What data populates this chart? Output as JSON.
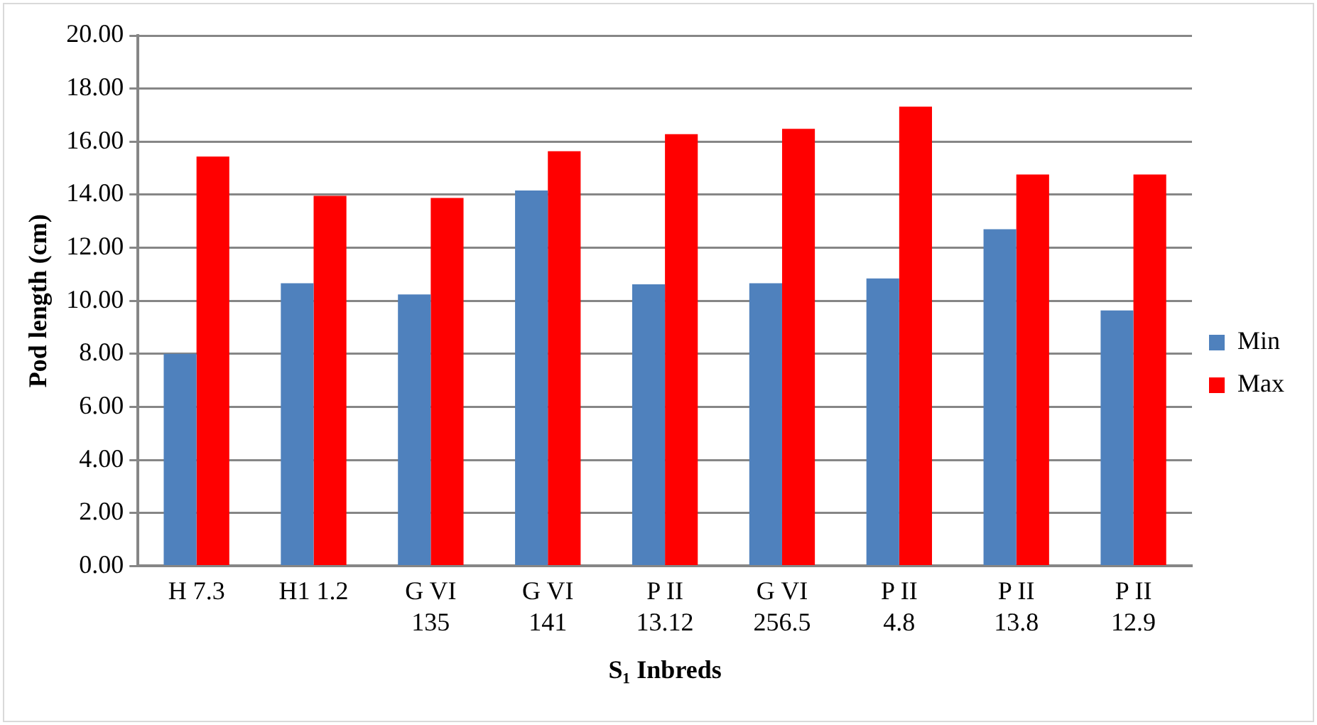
{
  "chart_data": {
    "type": "bar",
    "xlabel": "S₁ Inbreds",
    "ylabel": "Pod length (cm)",
    "categories": [
      "H 7.3",
      "H1 1.2",
      "G VI 135",
      "G VI 141",
      "P II 13.12",
      "G VI 256.5",
      "P II 4.8",
      "P II 13.8",
      "P II 12.9"
    ],
    "series": [
      {
        "name": "Min",
        "color": "#4f81bd",
        "values": [
          8.0,
          10.66,
          10.24,
          14.16,
          10.62,
          10.66,
          10.84,
          12.7,
          9.64
        ]
      },
      {
        "name": "Max",
        "color": "#ff0000",
        "values": [
          15.44,
          13.96,
          13.88,
          15.64,
          16.28,
          16.48,
          17.32,
          14.76,
          14.76
        ]
      }
    ],
    "ylim": [
      0,
      20
    ],
    "yticks": [
      {
        "value": 0,
        "label": "0.00"
      },
      {
        "value": 2,
        "label": "2.00"
      },
      {
        "value": 4,
        "label": "4.00"
      },
      {
        "value": 6,
        "label": "6.00"
      },
      {
        "value": 8,
        "label": "8.00"
      },
      {
        "value": 10,
        "label": "10.00"
      },
      {
        "value": 12,
        "label": "12.00"
      },
      {
        "value": 14,
        "label": "14.00"
      },
      {
        "value": 16,
        "label": "16.00"
      },
      {
        "value": 18,
        "label": "18.00"
      },
      {
        "value": 20,
        "label": "20.00"
      }
    ],
    "grid": "y",
    "legend": "right"
  }
}
